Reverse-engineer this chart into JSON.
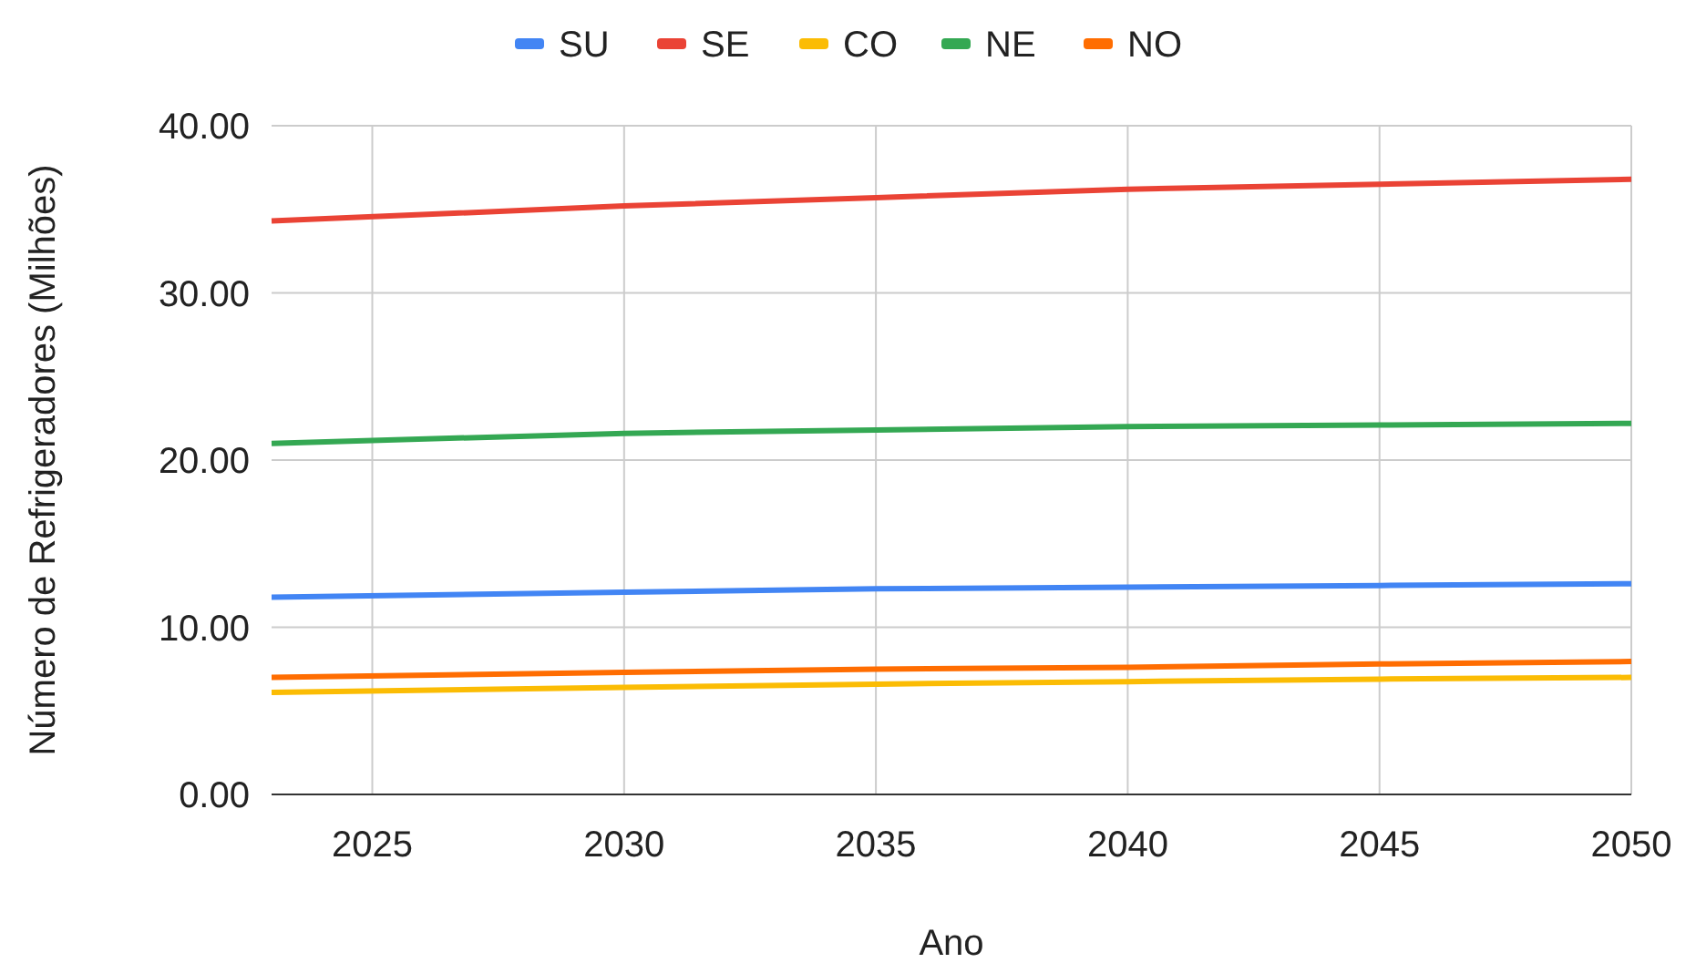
{
  "chart_data": {
    "type": "line",
    "xlabel": "Ano",
    "ylabel": "Número de Refrigeradores (Milhões)",
    "x": [
      2023,
      2030,
      2035,
      2040,
      2045,
      2050
    ],
    "series": [
      {
        "name": "SU",
        "color": "#4285f4",
        "values": [
          11.8,
          12.1,
          12.3,
          12.4,
          12.5,
          12.6
        ]
      },
      {
        "name": "SE",
        "color": "#ea4335",
        "values": [
          34.3,
          35.2,
          35.7,
          36.2,
          36.5,
          36.8
        ]
      },
      {
        "name": "CO",
        "color": "#fbbc04",
        "values": [
          6.1,
          6.4,
          6.6,
          6.75,
          6.9,
          7.0
        ]
      },
      {
        "name": "NE",
        "color": "#34a853",
        "values": [
          21.0,
          21.6,
          21.8,
          22.0,
          22.1,
          22.2
        ]
      },
      {
        "name": "NO",
        "color": "#ff6d01",
        "values": [
          7.0,
          7.3,
          7.5,
          7.6,
          7.8,
          7.95
        ]
      }
    ],
    "xlim": [
      2023,
      2050
    ],
    "xticks": [
      2025,
      2030,
      2035,
      2040,
      2045,
      2050
    ],
    "ylim": [
      0,
      40
    ],
    "yticks": [
      {
        "value": 0,
        "label": "0.00"
      },
      {
        "value": 10,
        "label": "10.00"
      },
      {
        "value": 20,
        "label": "20.00"
      },
      {
        "value": 30,
        "label": "30.00"
      },
      {
        "value": 40,
        "label": "40.00"
      }
    ],
    "grid": true,
    "legend": "top",
    "marker": "none",
    "line_style": "solid"
  }
}
